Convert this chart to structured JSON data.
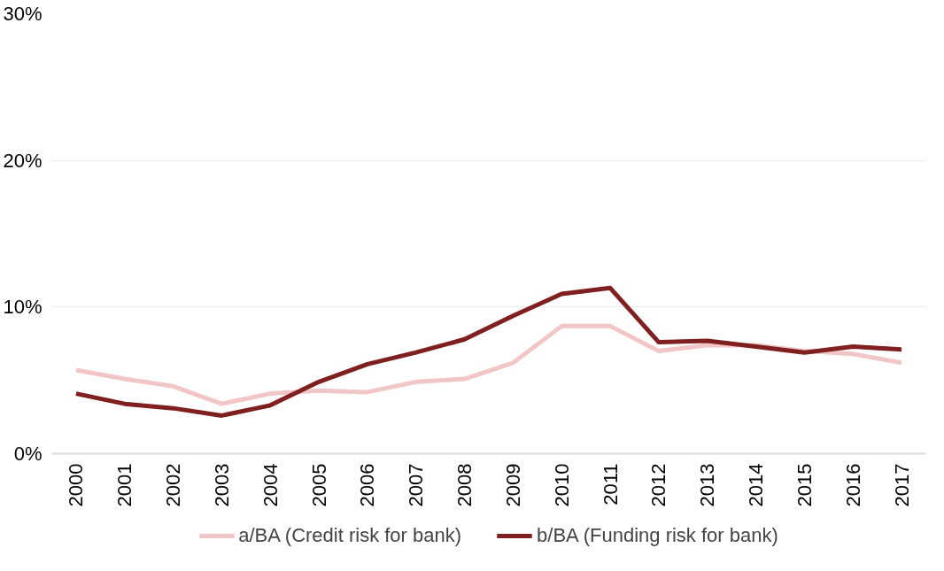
{
  "chart_data": {
    "type": "line",
    "categories": [
      "2000",
      "2001",
      "2002",
      "2003",
      "2004",
      "2005",
      "2006",
      "2007",
      "2008",
      "2009",
      "2010",
      "2011",
      "2012",
      "2013",
      "2014",
      "2015",
      "2016",
      "2017"
    ],
    "series": [
      {
        "name": "a/BA (Credit risk for bank)",
        "color": "#f2c6c6",
        "values": [
          5.7,
          5.1,
          4.6,
          3.4,
          4.1,
          4.3,
          4.2,
          4.9,
          5.1,
          6.2,
          8.7,
          8.7,
          7.0,
          7.4,
          7.4,
          7.0,
          6.8,
          6.2
        ]
      },
      {
        "name": "b/BA (Funding risk for bank)",
        "color": "#7f1f1f",
        "values": [
          4.1,
          3.4,
          3.1,
          2.6,
          3.3,
          4.9,
          6.1,
          6.9,
          7.8,
          9.4,
          10.9,
          11.3,
          7.6,
          7.7,
          7.3,
          6.9,
          7.3,
          7.1
        ]
      }
    ],
    "ylim": [
      0,
      30
    ],
    "yticks": [
      {
        "value": 0,
        "label": "0%"
      },
      {
        "value": 10,
        "label": "10%"
      },
      {
        "value": 20,
        "label": "20%"
      },
      {
        "value": 30,
        "label": "30%"
      }
    ],
    "grid": "y",
    "legend": "bottom",
    "marker": "none",
    "line_style": "solid"
  }
}
